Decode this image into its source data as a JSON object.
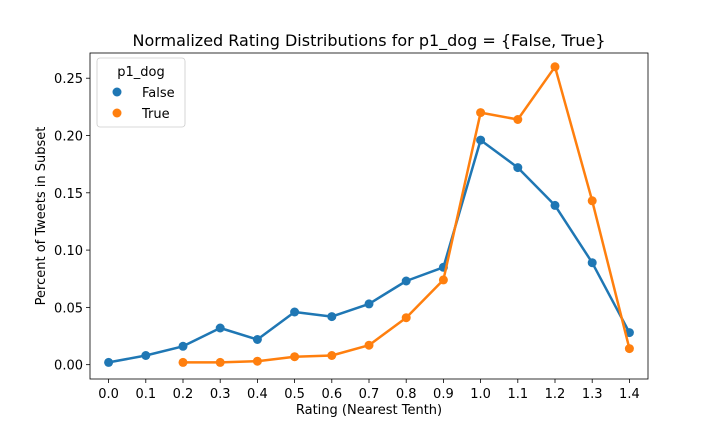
{
  "chart_data": {
    "type": "line",
    "title": "Normalized Rating Distributions for p1_dog = {False, True}",
    "xlabel": "Rating (Nearest Tenth)",
    "ylabel": "Percent of Tweets in Subset",
    "categories": [
      "0.0",
      "0.1",
      "0.2",
      "0.3",
      "0.4",
      "0.5",
      "0.6",
      "0.7",
      "0.8",
      "0.9",
      "1.0",
      "1.1",
      "1.2",
      "1.3",
      "1.4"
    ],
    "yticks": [
      "0.00",
      "0.05",
      "0.10",
      "0.15",
      "0.20",
      "0.25"
    ],
    "ylim": [
      -0.0125,
      0.272
    ],
    "grid": false,
    "legend": {
      "title": "p1_dog",
      "placement": "top-left"
    },
    "series": [
      {
        "name": "False",
        "color": "#1f77b4",
        "values": [
          0.002,
          0.008,
          0.016,
          0.032,
          0.022,
          0.046,
          0.042,
          0.053,
          0.073,
          0.085,
          0.196,
          0.172,
          0.139,
          0.089,
          0.028
        ]
      },
      {
        "name": "True",
        "color": "#ff7f0e",
        "values": [
          null,
          null,
          0.002,
          0.002,
          0.003,
          0.007,
          0.008,
          0.017,
          0.041,
          0.074,
          0.22,
          0.214,
          0.26,
          0.143,
          0.014
        ]
      }
    ]
  }
}
